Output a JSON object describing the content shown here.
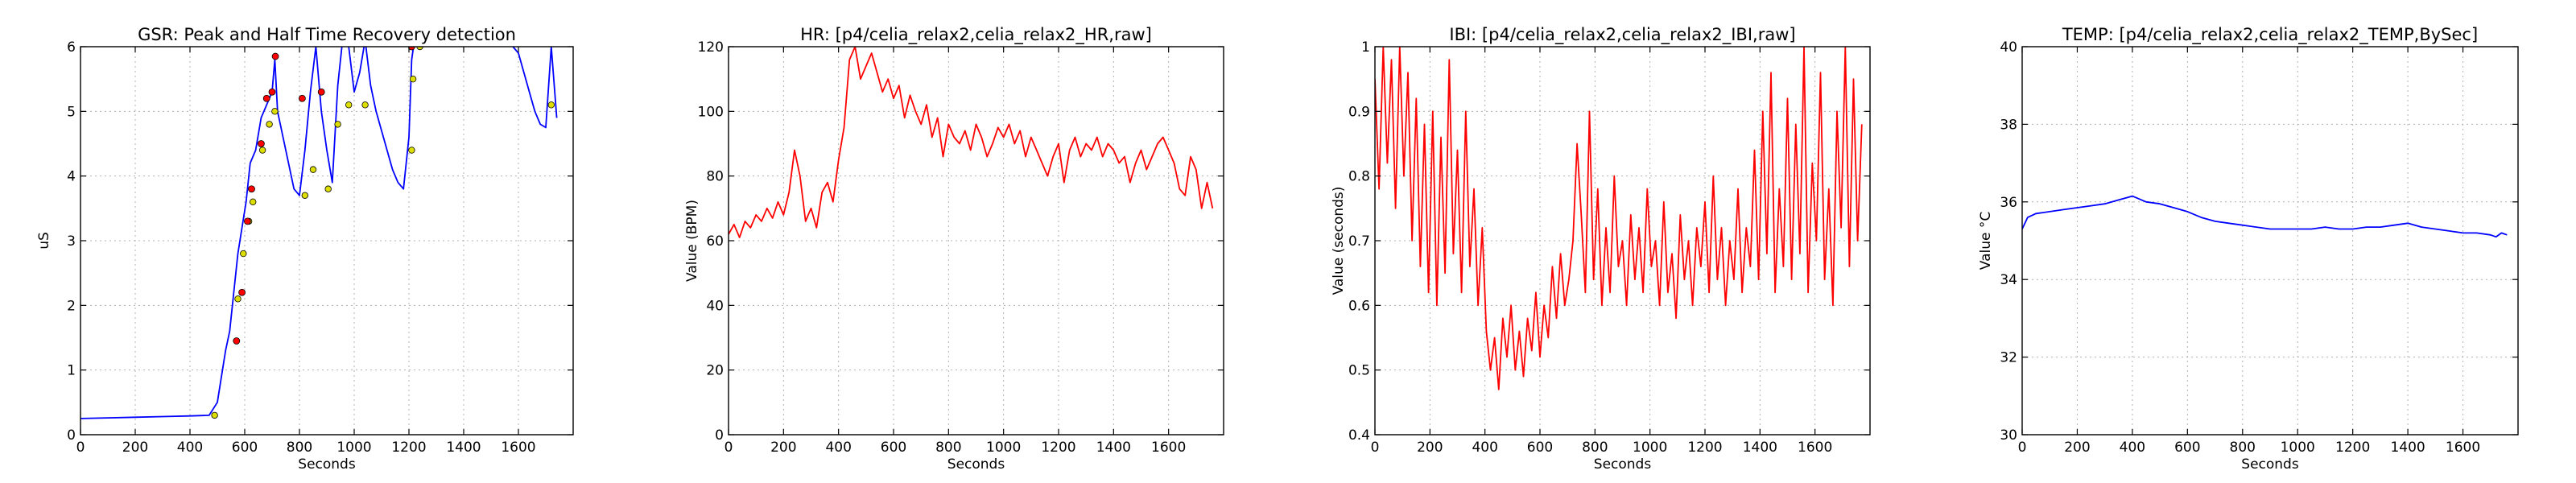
{
  "chart_data": [
    {
      "type": "line",
      "title": "GSR: Peak and Half Time Recovery detection",
      "xlabel": "Seconds",
      "ylabel": "uS",
      "xlim": [
        0,
        1800
      ],
      "ylim": [
        0,
        6
      ],
      "xticks": [
        0,
        200,
        400,
        600,
        800,
        1000,
        1200,
        1400,
        1600
      ],
      "yticks": [
        0,
        1,
        2,
        3,
        4,
        5,
        6
      ],
      "grid": true,
      "series": [
        {
          "color": "#0000ff",
          "x": [
            0,
            100,
            200,
            300,
            400,
            470,
            500,
            515,
            530,
            545,
            560,
            575,
            590,
            605,
            620,
            640,
            660,
            680,
            700,
            710,
            720,
            740,
            760,
            780,
            800,
            820,
            840,
            860,
            880,
            900,
            920,
            940,
            960,
            980,
            1000,
            1020,
            1040,
            1060,
            1080,
            1100,
            1120,
            1140,
            1160,
            1180,
            1200,
            1210,
            1220,
            1240,
            1260,
            1280,
            1300,
            1320,
            1340,
            1360,
            1380,
            1400,
            1420,
            1440,
            1460,
            1480,
            1500,
            1520,
            1540,
            1560,
            1580,
            1600,
            1620,
            1640,
            1660,
            1680,
            1700,
            1720,
            1740
          ],
          "y": [
            0.25,
            0.26,
            0.27,
            0.28,
            0.29,
            0.3,
            0.5,
            0.9,
            1.3,
            1.6,
            2.2,
            2.8,
            3.2,
            3.6,
            4.2,
            4.4,
            4.9,
            5.1,
            5.3,
            5.8,
            5.0,
            4.6,
            4.2,
            3.8,
            3.7,
            4.4,
            5.3,
            6.0,
            5.0,
            4.4,
            3.9,
            5.4,
            6.2,
            6.0,
            5.3,
            5.6,
            6.1,
            5.4,
            5.0,
            4.7,
            4.4,
            4.1,
            3.9,
            3.8,
            4.6,
            5.8,
            6.1,
            6.3,
            6.4,
            6.3,
            6.2,
            6.4,
            6.5,
            6.6,
            6.5,
            6.7,
            6.6,
            6.5,
            6.4,
            6.5,
            6.6,
            6.5,
            6.3,
            6.2,
            6.0,
            5.9,
            5.6,
            5.3,
            5.0,
            4.8,
            4.75,
            6.0,
            4.9
          ]
        }
      ],
      "peaks": {
        "color": "#ff0000",
        "x": [
          570,
          590,
          610,
          625,
          660,
          680,
          700,
          712,
          810,
          880,
          1210
        ],
        "y": [
          1.45,
          2.2,
          3.3,
          3.8,
          4.5,
          5.2,
          5.3,
          5.85,
          5.2,
          5.3,
          6.0
        ]
      },
      "half_recovery": {
        "color": "#dddd00",
        "x": [
          490,
          575,
          595,
          615,
          630,
          665,
          690,
          710,
          820,
          850,
          905,
          940,
          980,
          1040,
          1210,
          1215,
          1240,
          1720
        ],
        "y": [
          0.3,
          2.1,
          2.8,
          3.3,
          3.6,
          4.4,
          4.8,
          5.0,
          3.7,
          4.1,
          3.8,
          4.8,
          5.1,
          5.1,
          4.4,
          5.5,
          6.0,
          5.1
        ]
      }
    },
    {
      "type": "line",
      "title": "HR: [p4/celia_relax2,celia_relax2_HR,raw]",
      "xlabel": "Seconds",
      "ylabel": "Value (BPM)",
      "xlim": [
        0,
        1800
      ],
      "ylim": [
        0,
        120
      ],
      "xticks": [
        0,
        200,
        400,
        600,
        800,
        1000,
        1200,
        1400,
        1600
      ],
      "yticks": [
        0,
        20,
        40,
        60,
        80,
        100,
        120
      ],
      "grid": true,
      "series": [
        {
          "color": "#ff0000",
          "x": [
            0,
            20,
            40,
            60,
            80,
            100,
            120,
            140,
            160,
            180,
            200,
            220,
            240,
            260,
            280,
            300,
            320,
            340,
            360,
            380,
            400,
            420,
            440,
            460,
            480,
            500,
            520,
            540,
            560,
            580,
            600,
            620,
            640,
            660,
            680,
            700,
            720,
            740,
            760,
            780,
            800,
            820,
            840,
            860,
            880,
            900,
            920,
            940,
            960,
            980,
            1000,
            1020,
            1040,
            1060,
            1080,
            1100,
            1120,
            1140,
            1160,
            1180,
            1200,
            1220,
            1240,
            1260,
            1280,
            1300,
            1320,
            1340,
            1360,
            1380,
            1400,
            1420,
            1440,
            1460,
            1480,
            1500,
            1520,
            1540,
            1560,
            1580,
            1600,
            1620,
            1640,
            1660,
            1680,
            1700,
            1720,
            1740,
            1760
          ],
          "y": [
            62,
            65,
            61,
            66,
            64,
            68,
            66,
            70,
            67,
            72,
            68,
            75,
            88,
            80,
            66,
            70,
            64,
            75,
            78,
            72,
            85,
            95,
            116,
            120,
            110,
            114,
            118,
            112,
            106,
            110,
            104,
            108,
            98,
            105,
            100,
            96,
            102,
            92,
            98,
            86,
            96,
            92,
            90,
            94,
            88,
            96,
            92,
            86,
            90,
            95,
            92,
            96,
            90,
            94,
            86,
            92,
            88,
            84,
            80,
            86,
            90,
            78,
            88,
            92,
            86,
            90,
            88,
            92,
            86,
            90,
            88,
            84,
            86,
            78,
            84,
            88,
            82,
            86,
            90,
            92,
            88,
            84,
            76,
            74,
            86,
            82,
            70,
            78,
            70
          ]
        }
      ]
    },
    {
      "type": "line",
      "title": "IBI: [p4/celia_relax2,celia_relax2_IBI,raw]",
      "xlabel": "Seconds",
      "ylabel": "Value (seconds)",
      "xlim": [
        0,
        1800
      ],
      "ylim": [
        0.4,
        1.0
      ],
      "xticks": [
        0,
        200,
        400,
        600,
        800,
        1000,
        1200,
        1400,
        1600
      ],
      "yticks": [
        0.4,
        0.5,
        0.6,
        0.7,
        0.8,
        0.9,
        1.0
      ],
      "grid": true,
      "series": [
        {
          "color": "#ff0000",
          "x": [
            0,
            15,
            30,
            45,
            60,
            75,
            90,
            105,
            120,
            135,
            150,
            165,
            180,
            195,
            210,
            225,
            240,
            255,
            270,
            285,
            300,
            315,
            330,
            345,
            360,
            375,
            390,
            405,
            420,
            435,
            450,
            465,
            480,
            495,
            510,
            525,
            540,
            555,
            570,
            585,
            600,
            615,
            630,
            645,
            660,
            675,
            690,
            705,
            720,
            735,
            750,
            765,
            780,
            795,
            810,
            825,
            840,
            855,
            870,
            885,
            900,
            915,
            930,
            945,
            960,
            975,
            990,
            1005,
            1020,
            1035,
            1050,
            1065,
            1080,
            1095,
            1110,
            1125,
            1140,
            1155,
            1170,
            1185,
            1200,
            1215,
            1230,
            1245,
            1260,
            1275,
            1290,
            1305,
            1320,
            1335,
            1350,
            1365,
            1380,
            1395,
            1410,
            1425,
            1440,
            1455,
            1470,
            1485,
            1500,
            1515,
            1530,
            1545,
            1560,
            1575,
            1590,
            1605,
            1620,
            1635,
            1650,
            1665,
            1680,
            1695,
            1710,
            1725,
            1740,
            1755,
            1770
          ],
          "y": [
            0.95,
            0.78,
            1.0,
            0.82,
            0.98,
            0.75,
            1.0,
            0.8,
            0.96,
            0.7,
            0.92,
            0.66,
            0.88,
            0.62,
            0.9,
            0.6,
            0.86,
            0.65,
            0.98,
            0.68,
            0.84,
            0.62,
            0.9,
            0.66,
            0.78,
            0.6,
            0.72,
            0.56,
            0.5,
            0.55,
            0.47,
            0.58,
            0.52,
            0.6,
            0.5,
            0.56,
            0.49,
            0.58,
            0.53,
            0.62,
            0.52,
            0.6,
            0.55,
            0.66,
            0.58,
            0.68,
            0.6,
            0.64,
            0.7,
            0.85,
            0.74,
            0.62,
            0.9,
            0.64,
            0.78,
            0.6,
            0.72,
            0.62,
            0.8,
            0.66,
            0.7,
            0.6,
            0.74,
            0.64,
            0.72,
            0.62,
            0.78,
            0.66,
            0.7,
            0.6,
            0.76,
            0.62,
            0.68,
            0.58,
            0.74,
            0.64,
            0.7,
            0.6,
            0.72,
            0.66,
            0.76,
            0.62,
            0.8,
            0.64,
            0.72,
            0.6,
            0.7,
            0.64,
            0.78,
            0.62,
            0.72,
            0.66,
            0.84,
            0.64,
            0.9,
            0.68,
            0.96,
            0.62,
            0.78,
            0.66,
            0.92,
            0.64,
            0.88,
            0.68,
            1.0,
            0.62,
            0.82,
            0.7,
            0.96,
            0.64,
            0.78,
            0.6,
            0.9,
            0.72,
            1.0,
            0.66,
            0.95,
            0.7,
            0.88
          ]
        }
      ]
    },
    {
      "type": "line",
      "title": "TEMP: [p4/celia_relax2,celia_relax2_TEMP,BySec]",
      "xlabel": "Seconds",
      "ylabel": "Value °C",
      "xlim": [
        0,
        1800
      ],
      "ylim": [
        30,
        40
      ],
      "xticks": [
        0,
        200,
        400,
        600,
        800,
        1000,
        1200,
        1400,
        1600
      ],
      "yticks": [
        30,
        32,
        34,
        36,
        38,
        40
      ],
      "grid": true,
      "series": [
        {
          "color": "#0000ff",
          "x": [
            0,
            20,
            50,
            100,
            150,
            200,
            250,
            300,
            350,
            400,
            450,
            500,
            550,
            600,
            650,
            700,
            750,
            800,
            850,
            900,
            950,
            1000,
            1050,
            1100,
            1150,
            1200,
            1250,
            1300,
            1350,
            1400,
            1450,
            1500,
            1550,
            1600,
            1650,
            1700,
            1720,
            1740,
            1760
          ],
          "y": [
            35.3,
            35.6,
            35.7,
            35.75,
            35.8,
            35.85,
            35.9,
            35.95,
            36.05,
            36.15,
            36.0,
            35.95,
            35.85,
            35.75,
            35.6,
            35.5,
            35.45,
            35.4,
            35.35,
            35.3,
            35.3,
            35.3,
            35.3,
            35.35,
            35.3,
            35.3,
            35.35,
            35.35,
            35.4,
            35.45,
            35.35,
            35.3,
            35.25,
            35.2,
            35.2,
            35.15,
            35.1,
            35.2,
            35.15
          ]
        }
      ]
    }
  ]
}
